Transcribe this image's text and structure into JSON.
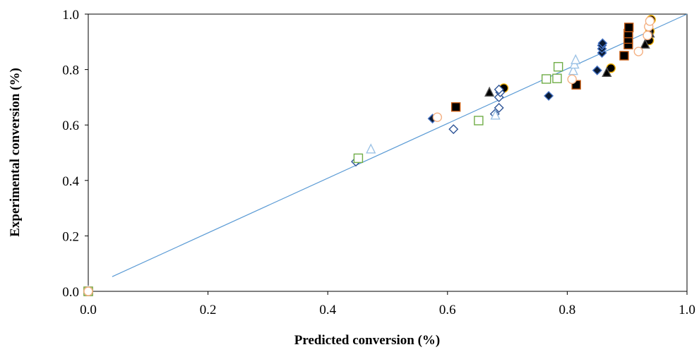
{
  "chart_data": {
    "type": "scatter",
    "title": "",
    "xlabel": "Predicted conversion (%)",
    "ylabel": "Experimental conversion (%)",
    "xlim": [
      0.0,
      1.0
    ],
    "ylim": [
      0.0,
      1.0
    ],
    "x_ticks": [
      "0.0",
      "0.2",
      "0.4",
      "0.6",
      "0.8",
      "1.0"
    ],
    "y_ticks": [
      "0.0",
      "0.2",
      "0.4",
      "0.6",
      "0.8",
      "1.0"
    ],
    "grid": false,
    "legend": "none",
    "trendline": {
      "x": [
        0.04,
        1.0
      ],
      "y": [
        0.053,
        1.0
      ],
      "color": "#5b9bd5"
    },
    "series": [
      {
        "marker": "circle",
        "fill": "#000000",
        "stroke": "#f0b000",
        "points": [
          [
            0.0,
            0.0
          ],
          [
            0.694,
            0.733
          ],
          [
            0.873,
            0.805
          ],
          [
            0.937,
            0.905
          ],
          [
            0.938,
            0.938
          ],
          [
            0.94,
            0.98
          ]
        ]
      },
      {
        "marker": "diamond",
        "fill": "#0a1a33",
        "stroke": "#4472c4",
        "points": [
          [
            0.575,
            0.623
          ],
          [
            0.769,
            0.705
          ],
          [
            0.85,
            0.797
          ],
          [
            0.858,
            0.86
          ],
          [
            0.858,
            0.875
          ],
          [
            0.858,
            0.887
          ],
          [
            0.859,
            0.895
          ]
        ]
      },
      {
        "marker": "diamond-open",
        "fill": "#ffffff",
        "stroke": "#2f5597",
        "points": [
          [
            0.0,
            0.0
          ],
          [
            0.447,
            0.468
          ],
          [
            0.61,
            0.585
          ],
          [
            0.679,
            0.64
          ],
          [
            0.686,
            0.662
          ],
          [
            0.686,
            0.7
          ],
          [
            0.688,
            0.718
          ],
          [
            0.686,
            0.728
          ]
        ]
      },
      {
        "marker": "triangle",
        "fill": "#000000",
        "stroke": "#555555",
        "points": [
          [
            0.67,
            0.717
          ],
          [
            0.866,
            0.788
          ],
          [
            0.93,
            0.89
          ],
          [
            0.938,
            0.93
          ]
        ]
      },
      {
        "marker": "square",
        "fill": "#000000",
        "stroke": "#c55a11",
        "points": [
          [
            0.0,
            0.0
          ],
          [
            0.614,
            0.665
          ],
          [
            0.815,
            0.745
          ],
          [
            0.895,
            0.85
          ],
          [
            0.902,
            0.89
          ],
          [
            0.902,
            0.91
          ],
          [
            0.902,
            0.93
          ],
          [
            0.903,
            0.952
          ]
        ]
      },
      {
        "marker": "triangle-open",
        "fill": "#ffffff",
        "stroke": "#9dc3e6",
        "points": [
          [
            0.0,
            0.0
          ],
          [
            0.472,
            0.512
          ],
          [
            0.68,
            0.634
          ],
          [
            0.81,
            0.795
          ],
          [
            0.812,
            0.818
          ],
          [
            0.814,
            0.834
          ]
        ]
      },
      {
        "marker": "square-open",
        "fill": "#ffffff",
        "stroke": "#70ad47",
        "points": [
          [
            0.0,
            0.0
          ],
          [
            0.451,
            0.48
          ],
          [
            0.652,
            0.616
          ],
          [
            0.765,
            0.766
          ],
          [
            0.783,
            0.768
          ],
          [
            0.785,
            0.81
          ]
        ]
      },
      {
        "marker": "circle-open",
        "fill": "#ffffff",
        "stroke": "#f4b183",
        "points": [
          [
            0.0,
            0.0
          ],
          [
            0.583,
            0.628
          ],
          [
            0.808,
            0.765
          ],
          [
            0.919,
            0.865
          ],
          [
            0.934,
            0.923
          ],
          [
            0.936,
            0.955
          ],
          [
            0.938,
            0.975
          ]
        ]
      }
    ]
  }
}
